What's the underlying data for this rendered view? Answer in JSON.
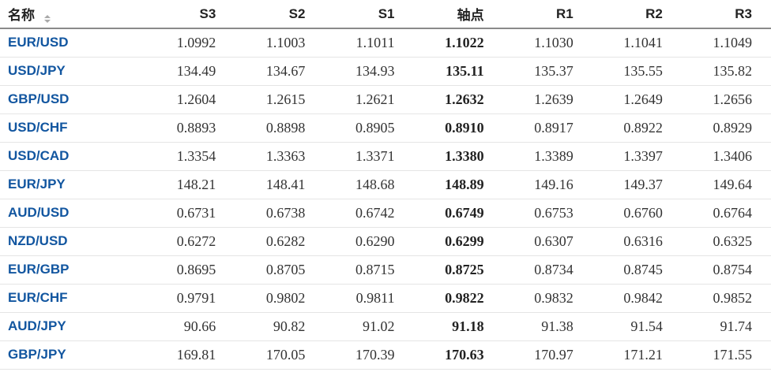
{
  "table": {
    "title_semantic": "forex-pivot-points",
    "columns": [
      {
        "key": "name",
        "label": "名称",
        "sortable": true
      },
      {
        "key": "s3",
        "label": "S3"
      },
      {
        "key": "s2",
        "label": "S2"
      },
      {
        "key": "s1",
        "label": "S1"
      },
      {
        "key": "pivot",
        "label": "轴点"
      },
      {
        "key": "r1",
        "label": "R1"
      },
      {
        "key": "r2",
        "label": "R2"
      },
      {
        "key": "r3",
        "label": "R3"
      }
    ],
    "rows": [
      {
        "name": "EUR/USD",
        "s3": "1.0992",
        "s2": "1.1003",
        "s1": "1.1011",
        "pivot": "1.1022",
        "r1": "1.1030",
        "r2": "1.1041",
        "r3": "1.1049"
      },
      {
        "name": "USD/JPY",
        "s3": "134.49",
        "s2": "134.67",
        "s1": "134.93",
        "pivot": "135.11",
        "r1": "135.37",
        "r2": "135.55",
        "r3": "135.82"
      },
      {
        "name": "GBP/USD",
        "s3": "1.2604",
        "s2": "1.2615",
        "s1": "1.2621",
        "pivot": "1.2632",
        "r1": "1.2639",
        "r2": "1.2649",
        "r3": "1.2656"
      },
      {
        "name": "USD/CHF",
        "s3": "0.8893",
        "s2": "0.8898",
        "s1": "0.8905",
        "pivot": "0.8910",
        "r1": "0.8917",
        "r2": "0.8922",
        "r3": "0.8929"
      },
      {
        "name": "USD/CAD",
        "s3": "1.3354",
        "s2": "1.3363",
        "s1": "1.3371",
        "pivot": "1.3380",
        "r1": "1.3389",
        "r2": "1.3397",
        "r3": "1.3406"
      },
      {
        "name": "EUR/JPY",
        "s3": "148.21",
        "s2": "148.41",
        "s1": "148.68",
        "pivot": "148.89",
        "r1": "149.16",
        "r2": "149.37",
        "r3": "149.64"
      },
      {
        "name": "AUD/USD",
        "s3": "0.6731",
        "s2": "0.6738",
        "s1": "0.6742",
        "pivot": "0.6749",
        "r1": "0.6753",
        "r2": "0.6760",
        "r3": "0.6764"
      },
      {
        "name": "NZD/USD",
        "s3": "0.6272",
        "s2": "0.6282",
        "s1": "0.6290",
        "pivot": "0.6299",
        "r1": "0.6307",
        "r2": "0.6316",
        "r3": "0.6325"
      },
      {
        "name": "EUR/GBP",
        "s3": "0.8695",
        "s2": "0.8705",
        "s1": "0.8715",
        "pivot": "0.8725",
        "r1": "0.8734",
        "r2": "0.8745",
        "r3": "0.8754"
      },
      {
        "name": "EUR/CHF",
        "s3": "0.9791",
        "s2": "0.9802",
        "s1": "0.9811",
        "pivot": "0.9822",
        "r1": "0.9832",
        "r2": "0.9842",
        "r3": "0.9852"
      },
      {
        "name": "AUD/JPY",
        "s3": "90.66",
        "s2": "90.82",
        "s1": "91.02",
        "pivot": "91.18",
        "r1": "91.38",
        "r2": "91.54",
        "r3": "91.74"
      },
      {
        "name": "GBP/JPY",
        "s3": "169.81",
        "s2": "170.05",
        "s1": "170.39",
        "pivot": "170.63",
        "r1": "170.97",
        "r2": "171.21",
        "r3": "171.55"
      }
    ],
    "colors": {
      "pair_link": "#1256a0",
      "value_text": "#333333",
      "pivot_text": "#222222",
      "header_text": "#222222",
      "header_border": "#8a8a8a",
      "row_border": "#e5e5e5",
      "sort_icon": "#a9a9a9",
      "background": "#ffffff"
    }
  }
}
